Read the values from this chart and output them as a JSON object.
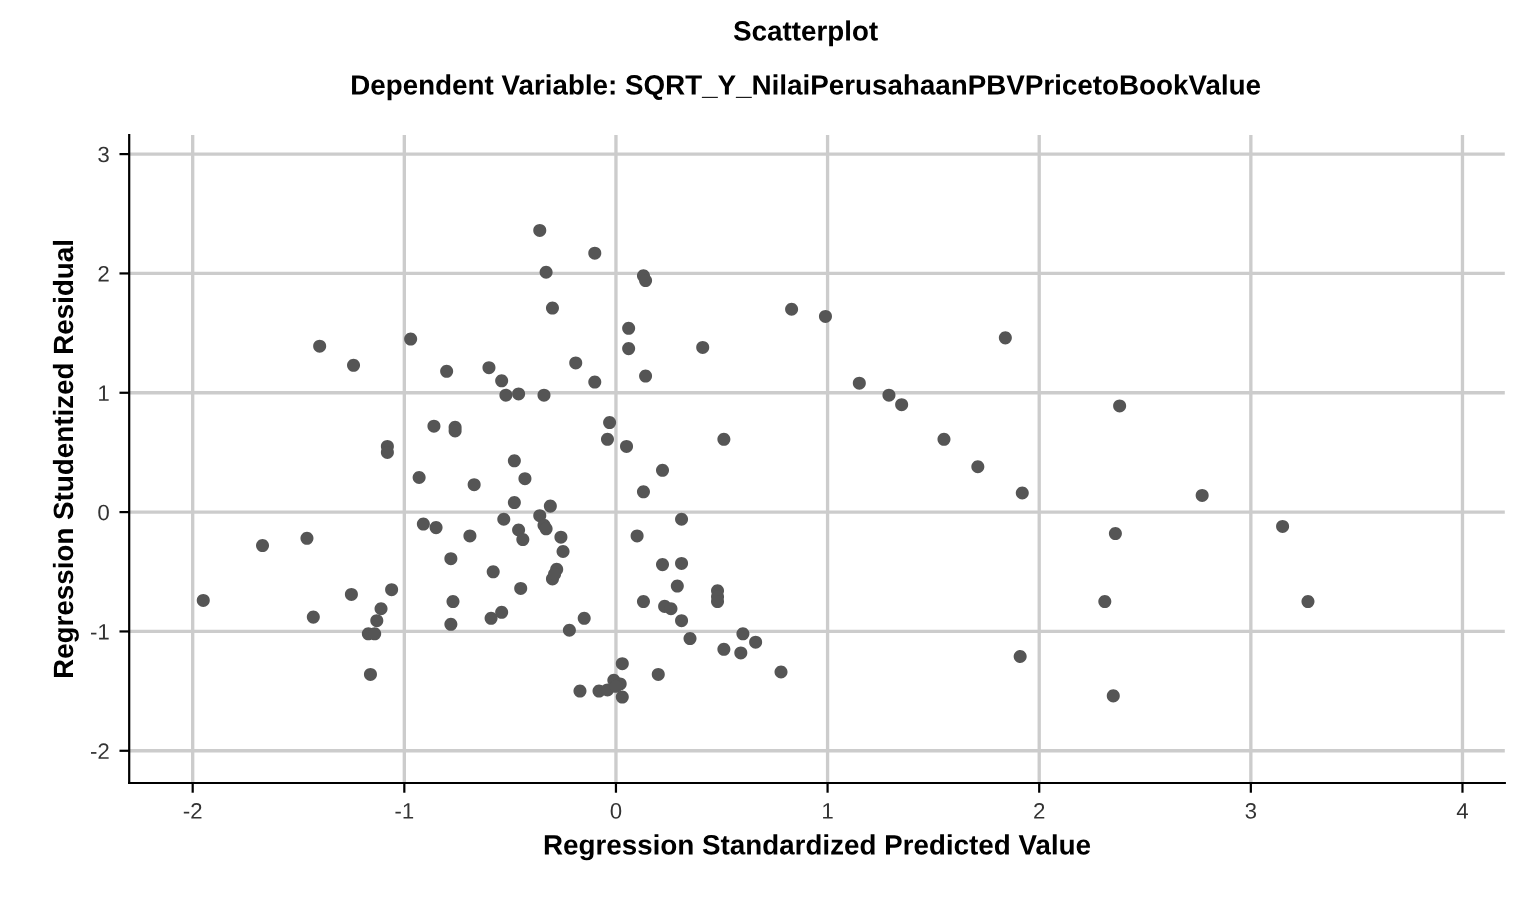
{
  "chart_data": {
    "type": "scatter",
    "title": "Scatterplot",
    "subtitle": "Dependent Variable: SQRT_Y_NilaiPerusahaanPBVPricetoBookValue",
    "xlabel": "Regression Standardized Predicted Value",
    "ylabel": "Regression Studentized Residual",
    "xlim": [
      -2.3,
      4.2
    ],
    "ylim": [
      -2.27,
      3.16
    ],
    "xticks": [
      -2,
      -1,
      0,
      1,
      2,
      3,
      4
    ],
    "yticks": [
      -2,
      -1,
      0,
      1,
      2,
      3
    ],
    "grid": true,
    "marker": "circle",
    "series": [
      {
        "color": "#555555",
        "x": [
          -1.95,
          -1.67,
          -1.46,
          -1.43,
          -1.4,
          -1.24,
          -1.25,
          -1.06,
          -1.11,
          -1.13,
          -1.17,
          -1.14,
          -1.16,
          -1.08,
          -1.08,
          -0.97,
          -0.93,
          -0.91,
          -0.85,
          -0.86,
          -0.76,
          -0.76,
          -0.8,
          -0.67,
          -0.69,
          -0.78,
          -0.77,
          -0.78,
          -0.6,
          -0.54,
          -0.52,
          -0.46,
          -0.34,
          -0.58,
          -0.53,
          -0.48,
          -0.43,
          -0.48,
          -0.46,
          -0.44,
          -0.45,
          -0.59,
          -0.54,
          -0.36,
          -0.33,
          -0.3,
          -0.19,
          -0.1,
          -0.1,
          -0.36,
          -0.31,
          -0.34,
          -0.33,
          -0.26,
          -0.25,
          -0.28,
          -0.3,
          -0.29,
          -0.22,
          -0.15,
          -0.17,
          -0.08,
          0.13,
          0.14,
          0.06,
          0.06,
          0.14,
          0.41,
          0.83,
          0.99,
          1.84,
          1.15,
          1.29,
          1.35,
          1.55,
          1.71,
          1.92,
          -0.03,
          -0.04,
          0.05,
          0.51,
          0.22,
          0.13,
          0.31,
          0.1,
          0.22,
          0.31,
          0.29,
          0.48,
          0.48,
          0.48,
          0.13,
          0.23,
          0.26,
          0.31,
          0.35,
          0.6,
          0.66,
          0.51,
          0.59,
          0.78,
          0.2,
          0.03,
          -0.01,
          0.02,
          -0.04,
          0.03,
          0.0,
          1.91,
          2.38,
          2.77,
          3.15,
          2.36,
          2.31,
          3.27,
          2.35
        ],
        "values": [
          -0.74,
          -0.28,
          -0.22,
          -0.88,
          1.39,
          1.23,
          -0.69,
          -0.65,
          -0.81,
          -0.91,
          -1.02,
          -1.02,
          -1.36,
          0.55,
          0.5,
          1.45,
          0.29,
          -0.1,
          -0.13,
          0.72,
          0.71,
          0.68,
          1.18,
          0.23,
          -0.2,
          -0.39,
          -0.75,
          -0.94,
          1.21,
          1.1,
          0.98,
          0.99,
          0.98,
          -0.5,
          -0.06,
          0.43,
          0.28,
          0.08,
          -0.15,
          -0.23,
          -0.64,
          -0.89,
          -0.84,
          2.36,
          2.01,
          1.71,
          1.25,
          2.17,
          1.09,
          -0.03,
          0.05,
          -0.11,
          -0.14,
          -0.21,
          -0.33,
          -0.48,
          -0.56,
          -0.52,
          -0.99,
          -0.89,
          -1.5,
          -1.5,
          1.98,
          1.94,
          1.54,
          1.37,
          1.14,
          1.38,
          1.7,
          1.64,
          1.46,
          1.08,
          0.98,
          0.9,
          0.61,
          0.38,
          0.16,
          0.75,
          0.61,
          0.55,
          0.61,
          0.35,
          0.17,
          -0.06,
          -0.2,
          -0.44,
          -0.43,
          -0.62,
          -0.66,
          -0.71,
          -0.75,
          -0.75,
          -0.79,
          -0.81,
          -0.91,
          -1.06,
          -1.02,
          -1.09,
          -1.15,
          -1.18,
          -1.34,
          -1.36,
          -1.27,
          -1.41,
          -1.44,
          -1.49,
          -1.55,
          -1.46,
          -1.21,
          0.89,
          0.14,
          -0.12,
          -0.18,
          -0.75,
          -0.75,
          -1.54
        ]
      }
    ]
  }
}
